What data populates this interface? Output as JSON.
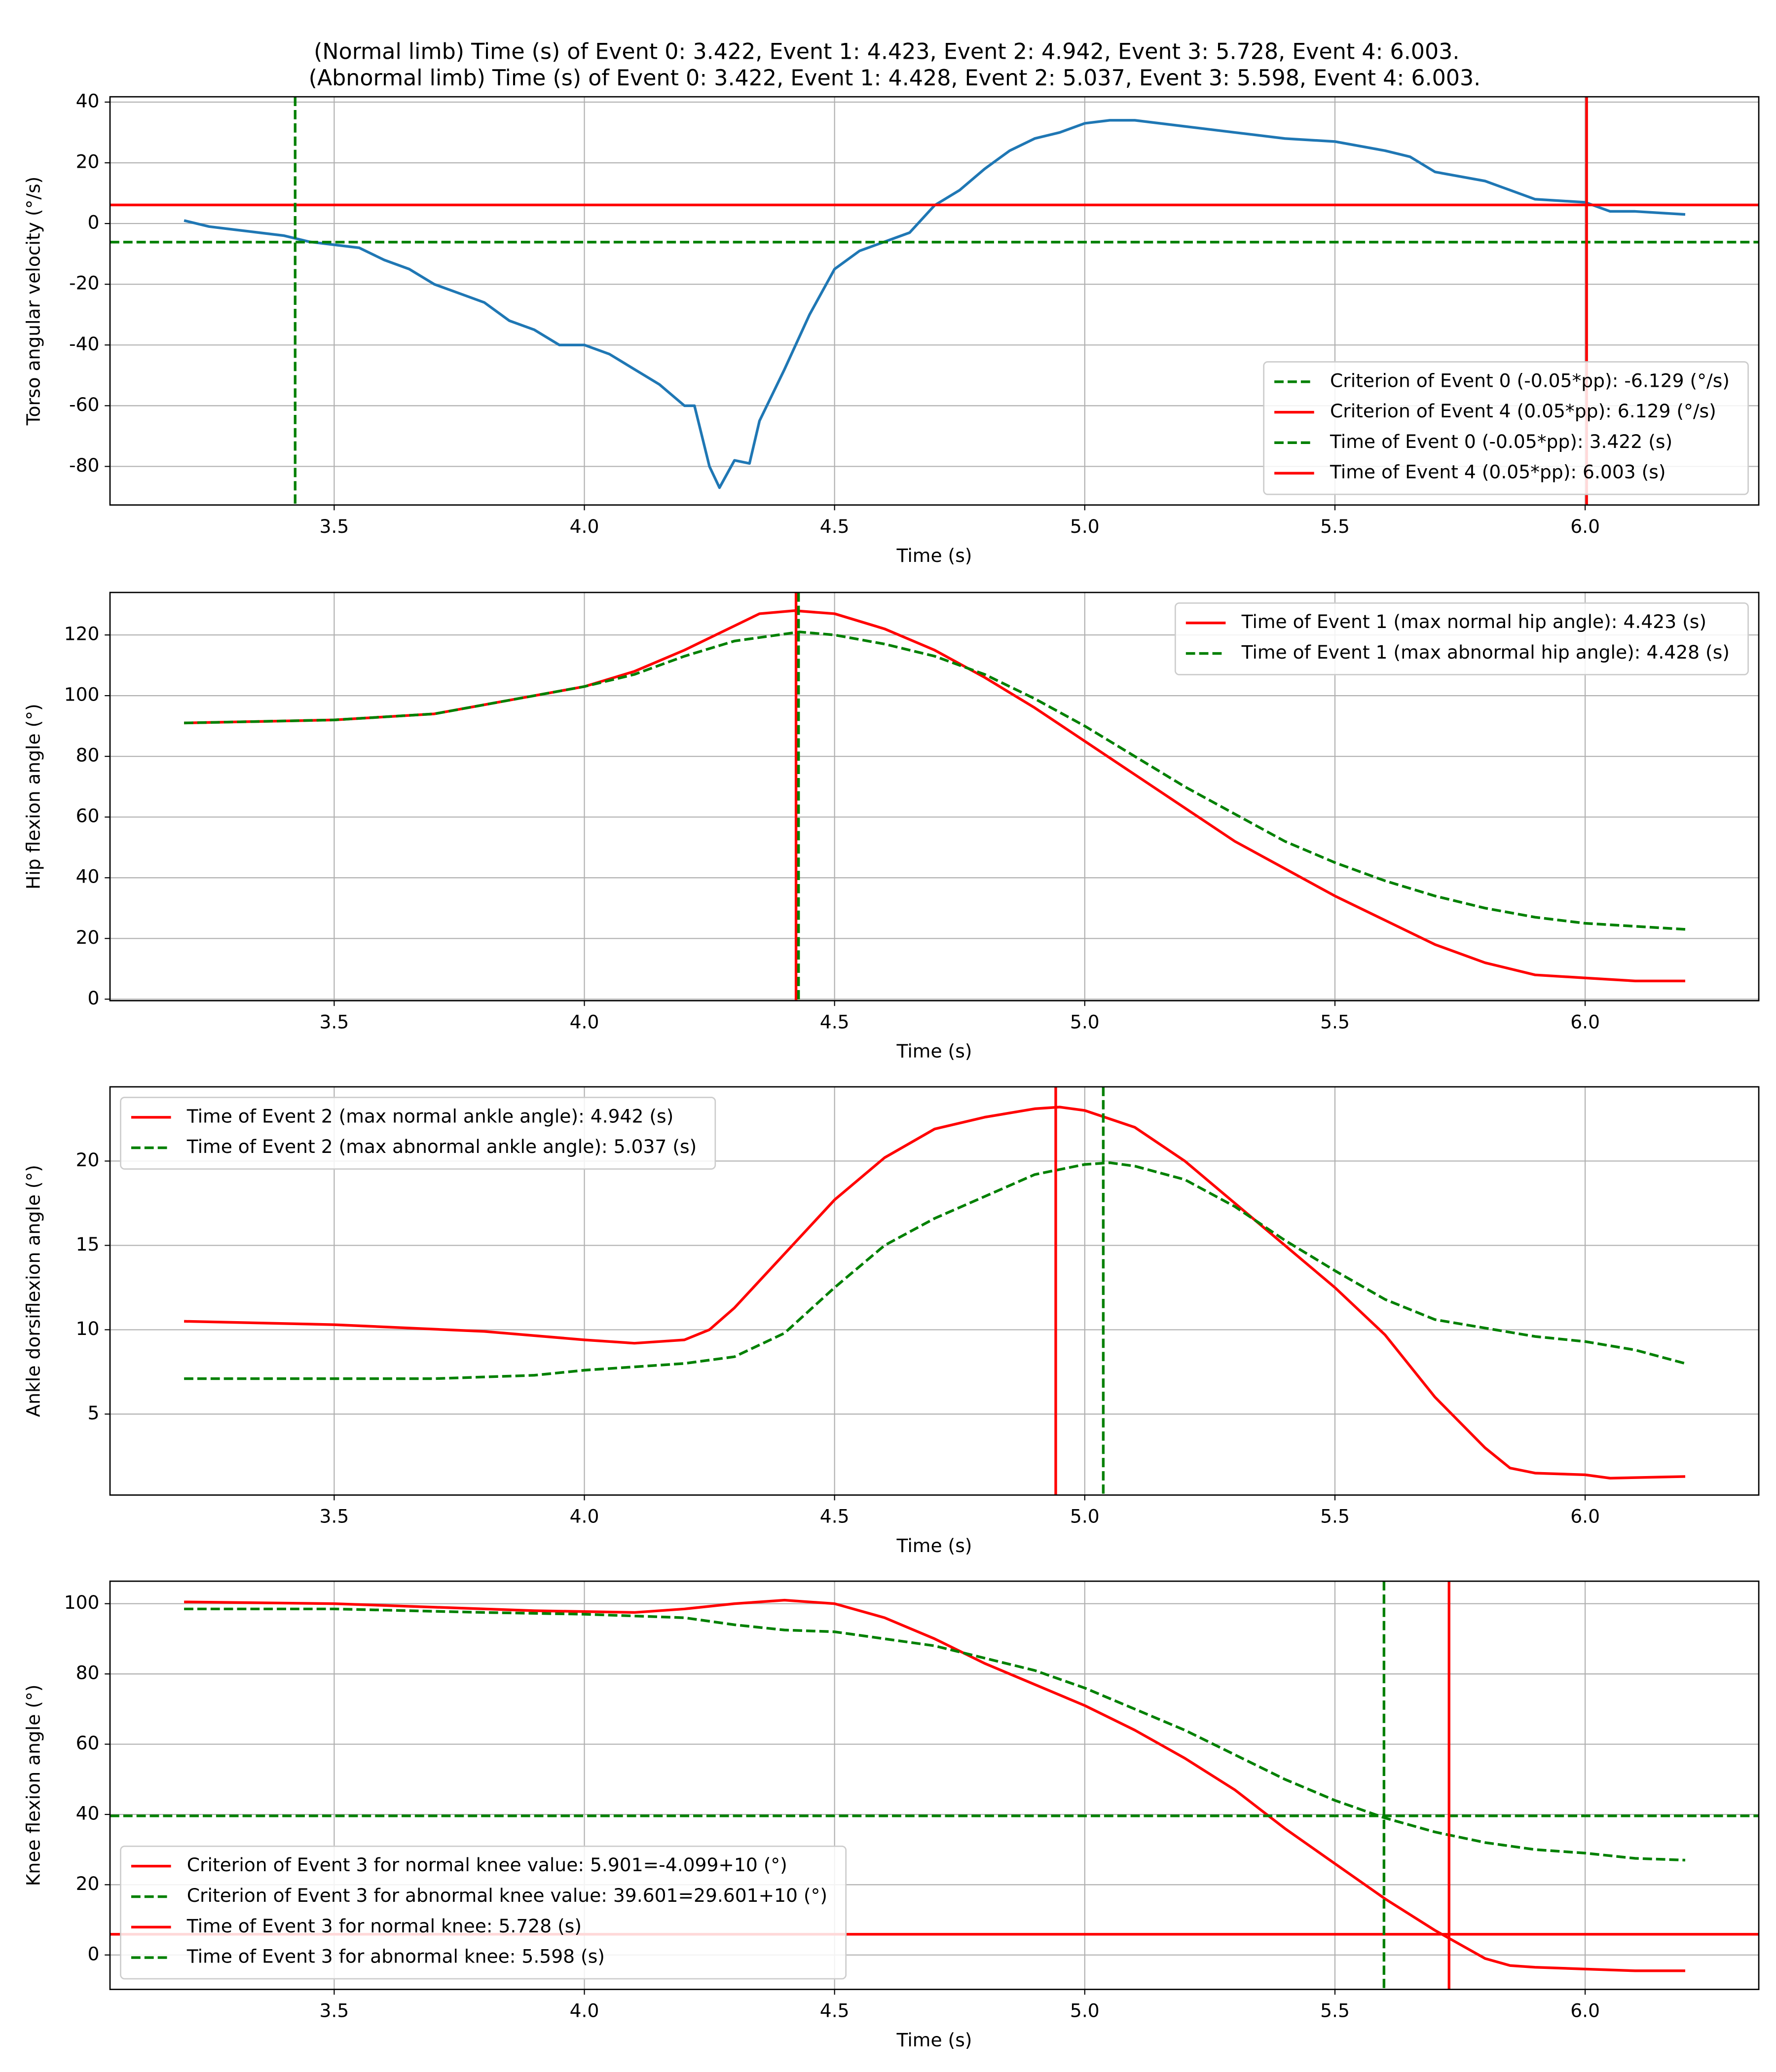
{
  "title": [
    "(Normal limb) Time (s) of Event 0: 3.422, Event 1: 4.423, Event 2: 4.942, Event 3: 5.728, Event 4: 6.003.",
    "(Abnormal limb) Time (s) of Event 0: 3.422, Event 1: 4.428, Event 2: 5.037, Event 3: 5.598, Event 4: 6.003."
  ],
  "chart_data": [
    {
      "type": "line",
      "xlabel": "Time (s)",
      "ylabel": "Torso angular velocity (°/s)",
      "xlim": [
        3.052,
        6.347
      ],
      "ylim": [
        -92.7,
        41.75
      ],
      "xticks": [
        3.5,
        {
          "value": 4,
          "label": "4.0"
        },
        4.5,
        {
          "value": 5,
          "label": "5.0"
        },
        5.5,
        {
          "value": 6,
          "label": "6.0"
        }
      ],
      "yticks": [
        -80,
        -60,
        -40,
        -20,
        0,
        20,
        40
      ],
      "grid": true,
      "legend": "lower right",
      "series": [
        {
          "color": "#1f77b4",
          "dashed": false,
          "x": [
            3.2,
            3.25,
            3.3,
            3.35,
            3.4,
            3.45,
            3.5,
            3.55,
            3.6,
            3.65,
            3.7,
            3.75,
            3.8,
            3.85,
            3.9,
            3.95,
            4.0,
            4.05,
            4.1,
            4.15,
            4.2,
            4.22,
            4.25,
            4.27,
            4.3,
            4.33,
            4.35,
            4.4,
            4.45,
            4.5,
            4.55,
            4.6,
            4.65,
            4.7,
            4.75,
            4.8,
            4.85,
            4.9,
            4.95,
            5.0,
            5.05,
            5.1,
            5.2,
            5.3,
            5.4,
            5.5,
            5.6,
            5.65,
            5.7,
            5.8,
            5.9,
            6.0,
            6.05,
            6.1,
            6.2
          ],
          "values": [
            1,
            -1,
            -2,
            -3,
            -4,
            -6,
            -7,
            -8,
            -12,
            -15,
            -20,
            -23,
            -26,
            -32,
            -35,
            -40,
            -40,
            -43,
            -48,
            -53,
            -60,
            -60,
            -80,
            -87,
            -78,
            -79,
            -65,
            -48,
            -30,
            -15,
            -9,
            -6,
            -3,
            6,
            11,
            18,
            24,
            28,
            30,
            33,
            34,
            34,
            32,
            30,
            28,
            27,
            24,
            22,
            17,
            14,
            8,
            7,
            4,
            4,
            3
          ]
        }
      ],
      "lines": [
        {
          "name": "Criterion of Event 0 (-0.05*pp): -6.129 (°/s)",
          "color": "#008000",
          "dashed": true,
          "orientation": "h",
          "value": -6.129
        },
        {
          "name": "Criterion of Event 4 (0.05*pp): 6.129 (°/s)",
          "color": "#ff0000",
          "dashed": false,
          "orientation": "h",
          "value": 6.129
        },
        {
          "name": "Time of Event 0 (-0.05*pp): 3.422 (s)",
          "color": "#008000",
          "dashed": true,
          "orientation": "v",
          "value": 3.422
        },
        {
          "name": "Time of Event 4 (0.05*pp): 6.003 (s)",
          "color": "#ff0000",
          "dashed": false,
          "orientation": "v",
          "value": 6.003
        }
      ]
    },
    {
      "type": "line",
      "xlabel": "Time (s)",
      "ylabel": "Hip flexion angle (°)",
      "xlim": [
        3.052,
        6.347
      ],
      "ylim": [
        -0.5,
        134
      ],
      "xticks": [
        3.5,
        {
          "value": 4,
          "label": "4.0"
        },
        4.5,
        {
          "value": 5,
          "label": "5.0"
        },
        5.5,
        {
          "value": 6,
          "label": "6.0"
        }
      ],
      "yticks": [
        0,
        20,
        40,
        60,
        80,
        100,
        120
      ],
      "grid": true,
      "legend": "upper right",
      "series": [
        {
          "color": "#ff0000",
          "dashed": false,
          "x": [
            3.2,
            3.5,
            3.7,
            3.8,
            3.9,
            4.0,
            4.1,
            4.2,
            4.3,
            4.35,
            4.42,
            4.5,
            4.6,
            4.7,
            4.8,
            4.9,
            5.0,
            5.1,
            5.2,
            5.3,
            5.4,
            5.5,
            5.6,
            5.7,
            5.8,
            5.9,
            6.0,
            6.1,
            6.2
          ],
          "values": [
            91,
            92,
            94,
            97,
            100,
            103,
            108,
            115,
            123,
            127,
            128,
            127,
            122,
            115,
            106,
            96,
            85,
            74,
            63,
            52,
            43,
            34,
            26,
            18,
            12,
            8,
            7,
            6,
            6
          ]
        },
        {
          "color": "#008000",
          "dashed": true,
          "x": [
            3.2,
            3.5,
            3.7,
            3.8,
            3.9,
            4.0,
            4.1,
            4.2,
            4.3,
            4.43,
            4.5,
            4.6,
            4.7,
            4.8,
            4.9,
            5.0,
            5.1,
            5.2,
            5.3,
            5.4,
            5.5,
            5.6,
            5.7,
            5.8,
            5.9,
            6.0,
            6.1,
            6.2
          ],
          "values": [
            91,
            92,
            94,
            97,
            100,
            103,
            107,
            113,
            118,
            121,
            120,
            117,
            113,
            107,
            99,
            90,
            80,
            70,
            61,
            52,
            45,
            39,
            34,
            30,
            27,
            25,
            24,
            23
          ]
        }
      ],
      "lines": [
        {
          "name": "Time of Event 1 (max normal hip angle): 4.423 (s)",
          "color": "#ff0000",
          "dashed": false,
          "orientation": "v",
          "value": 4.423
        },
        {
          "name": "Time of Event 1 (max abnormal hip angle): 4.428 (s)",
          "color": "#008000",
          "dashed": true,
          "orientation": "v",
          "value": 4.428
        }
      ]
    },
    {
      "type": "line",
      "xlabel": "Time (s)",
      "ylabel": "Ankle dorsiflexion angle (°)",
      "xlim": [
        3.052,
        6.347
      ],
      "ylim": [
        0.2,
        24.4
      ],
      "xticks": [
        3.5,
        {
          "value": 4,
          "label": "4.0"
        },
        4.5,
        {
          "value": 5,
          "label": "5.0"
        },
        5.5,
        {
          "value": 6,
          "label": "6.0"
        }
      ],
      "yticks": [
        5,
        10,
        15,
        20
      ],
      "grid": true,
      "legend": "upper left",
      "series": [
        {
          "color": "#ff0000",
          "dashed": false,
          "x": [
            3.2,
            3.5,
            3.8,
            4.0,
            4.1,
            4.2,
            4.25,
            4.3,
            4.4,
            4.5,
            4.6,
            4.7,
            4.8,
            4.9,
            4.95,
            5.0,
            5.1,
            5.2,
            5.3,
            5.4,
            5.5,
            5.6,
            5.7,
            5.8,
            5.85,
            5.9,
            6.0,
            6.05,
            6.2
          ],
          "values": [
            10.5,
            10.3,
            9.9,
            9.4,
            9.2,
            9.4,
            10,
            11.3,
            14.5,
            17.7,
            20.2,
            21.9,
            22.6,
            23.1,
            23.2,
            23,
            22,
            20,
            17.5,
            15,
            12.5,
            9.7,
            6,
            3,
            1.8,
            1.5,
            1.4,
            1.2,
            1.3
          ]
        },
        {
          "color": "#008000",
          "dashed": true,
          "x": [
            3.2,
            3.5,
            3.7,
            3.9,
            4.0,
            4.2,
            4.3,
            4.4,
            4.5,
            4.6,
            4.7,
            4.8,
            4.9,
            5.0,
            5.05,
            5.1,
            5.2,
            5.3,
            5.4,
            5.5,
            5.6,
            5.7,
            5.8,
            5.9,
            6.0,
            6.1,
            6.2
          ],
          "values": [
            7.1,
            7.1,
            7.1,
            7.3,
            7.6,
            8,
            8.4,
            9.8,
            12.5,
            15,
            16.6,
            17.9,
            19.2,
            19.8,
            19.9,
            19.7,
            18.9,
            17.3,
            15.3,
            13.5,
            11.8,
            10.6,
            10.1,
            9.6,
            9.3,
            8.8,
            8
          ]
        }
      ],
      "lines": [
        {
          "name": "Time of Event 2 (max normal ankle angle): 4.942 (s)",
          "color": "#ff0000",
          "dashed": false,
          "orientation": "v",
          "value": 4.942
        },
        {
          "name": "Time of Event 2 (max abnormal ankle angle): 5.037 (s)",
          "color": "#008000",
          "dashed": true,
          "orientation": "v",
          "value": 5.037
        }
      ]
    },
    {
      "type": "line",
      "xlabel": "Time (s)",
      "ylabel": "Knee flexion angle (°)",
      "xlim": [
        3.052,
        6.347
      ],
      "ylim": [
        -9.8,
        106.4
      ],
      "xticks": [
        3.5,
        {
          "value": 4,
          "label": "4.0"
        },
        4.5,
        {
          "value": 5,
          "label": "5.0"
        },
        5.5,
        {
          "value": 6,
          "label": "6.0"
        }
      ],
      "yticks": [
        0,
        20,
        40,
        60,
        80,
        100
      ],
      "grid": true,
      "legend": "lower left",
      "series": [
        {
          "color": "#ff0000",
          "dashed": false,
          "x": [
            3.2,
            3.5,
            3.7,
            3.9,
            4.1,
            4.2,
            4.3,
            4.4,
            4.5,
            4.6,
            4.7,
            4.8,
            4.9,
            5.0,
            5.1,
            5.2,
            5.3,
            5.4,
            5.5,
            5.6,
            5.7,
            5.75,
            5.8,
            5.85,
            5.9,
            6.0,
            6.1,
            6.2
          ],
          "values": [
            100.5,
            100,
            99,
            98,
            97.5,
            98.5,
            100,
            101,
            100,
            96,
            90,
            83,
            77,
            71,
            64,
            56,
            47,
            36,
            26,
            16,
            7,
            3,
            -1,
            -3,
            -3.5,
            -4,
            -4.5,
            -4.5
          ]
        },
        {
          "color": "#008000",
          "dashed": true,
          "x": [
            3.2,
            3.5,
            3.8,
            4.0,
            4.2,
            4.3,
            4.4,
            4.5,
            4.6,
            4.7,
            4.8,
            4.9,
            5.0,
            5.1,
            5.2,
            5.3,
            5.4,
            5.5,
            5.6,
            5.7,
            5.8,
            5.9,
            6.0,
            6.1,
            6.2
          ],
          "values": [
            98.5,
            98.5,
            97.5,
            97,
            96,
            94,
            92.5,
            92,
            90,
            88,
            84.5,
            81,
            76,
            70,
            64,
            57,
            50,
            44,
            39,
            35,
            32,
            30,
            29,
            27.5,
            27
          ]
        }
      ],
      "lines": [
        {
          "name": "Criterion of Event 3 for normal knee value: 5.901=-4.099+10 (°)",
          "color": "#ff0000",
          "dashed": false,
          "orientation": "h",
          "value": 5.901
        },
        {
          "name": "Criterion of Event 3 for abnormal knee value: 39.601=29.601+10 (°)",
          "color": "#008000",
          "dashed": true,
          "orientation": "h",
          "value": 39.601
        },
        {
          "name": "Time of Event 3 for normal knee: 5.728 (s)",
          "color": "#ff0000",
          "dashed": false,
          "orientation": "v",
          "value": 5.728
        },
        {
          "name": "Time of Event 3 for abnormal knee: 5.598 (s)",
          "color": "#008000",
          "dashed": true,
          "orientation": "v",
          "value": 5.598
        }
      ]
    }
  ]
}
